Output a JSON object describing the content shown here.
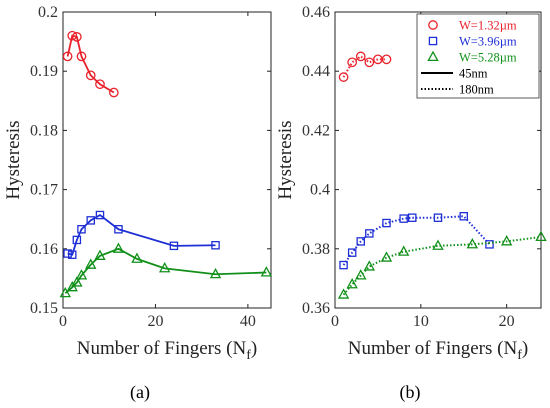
{
  "figure": {
    "panel_a_label": "(a)",
    "panel_b_label": "(b)"
  },
  "colors": {
    "red": "#e8212a",
    "blue": "#1f2fd6",
    "green": "#11901a",
    "axis": "#222222"
  },
  "chart_data": [
    {
      "type": "line",
      "panel": "(a)",
      "xlabel": "Number of Fingers (N",
      "xlabel_sub": "f",
      "xlabel_close": ")",
      "ylabel": "Hysteresis",
      "xlim": [
        0,
        45
      ],
      "ylim": [
        0.15,
        0.2
      ],
      "xticks": [
        0,
        20,
        40
      ],
      "yticks": [
        0.15,
        0.16,
        0.17,
        0.18,
        0.19,
        0.2
      ],
      "ytick_labels": [
        "0.15",
        "0.16",
        "0.17",
        "0.18",
        "0.19",
        "0.2"
      ],
      "grid": false,
      "series": [
        {
          "color": "red",
          "marker": "circle",
          "line": "solid",
          "x": [
            1,
            2,
            3,
            4,
            6,
            8,
            11
          ],
          "y": [
            0.1925,
            0.196,
            0.1958,
            0.1925,
            0.1893,
            0.1878,
            0.1864
          ]
        },
        {
          "color": "blue",
          "marker": "square",
          "line": "solid",
          "x": [
            1,
            2,
            3,
            4,
            6,
            8,
            12,
            24,
            33
          ],
          "y": [
            0.1592,
            0.159,
            0.1615,
            0.1633,
            0.1648,
            0.1657,
            0.1633,
            0.1605,
            0.1606
          ]
        },
        {
          "color": "green",
          "marker": "triangle",
          "line": "solid",
          "x": [
            0.5,
            2,
            3,
            4,
            6,
            8,
            12,
            16,
            22,
            33,
            44
          ],
          "y": [
            0.1525,
            0.1535,
            0.1543,
            0.1555,
            0.1573,
            0.1588,
            0.16,
            0.1583,
            0.1567,
            0.1557,
            0.156
          ]
        }
      ]
    },
    {
      "type": "line",
      "panel": "(b)",
      "xlabel": "Number of Fingers (N",
      "xlabel_sub": "f",
      "xlabel_close": ")",
      "ylabel": "Hysteresis",
      "xlim": [
        0,
        24
      ],
      "ylim": [
        0.36,
        0.46
      ],
      "xticks": [
        0,
        10,
        20
      ],
      "yticks": [
        0.36,
        0.38,
        0.4,
        0.42,
        0.44,
        0.46
      ],
      "ytick_labels": [
        "0.36",
        "0.38",
        "0.4",
        "0.42",
        "0.44",
        "0.46"
      ],
      "grid": false,
      "legend": {
        "placement": "top-right",
        "entries": [
          {
            "label": "W=1.32µm",
            "color": "red",
            "marker": "circle"
          },
          {
            "label": "W=3.96µm",
            "color": "blue",
            "marker": "square"
          },
          {
            "label": "W=5.28µm",
            "color": "green",
            "marker": "triangle"
          },
          {
            "label": "45nm",
            "line": "solid"
          },
          {
            "label": "180nm",
            "line": "dotted"
          }
        ]
      },
      "series": [
        {
          "color": "red",
          "marker": "circle",
          "line": "dotted",
          "x": [
            1,
            2,
            3,
            4,
            5,
            6
          ],
          "y": [
            0.438,
            0.443,
            0.445,
            0.443,
            0.444,
            0.444
          ]
        },
        {
          "color": "blue",
          "marker": "square",
          "line": "dotted",
          "x": [
            1,
            2,
            3,
            4,
            6,
            8,
            9,
            12,
            15,
            18
          ],
          "y": [
            0.3745,
            0.3787,
            0.3825,
            0.3852,
            0.3887,
            0.3902,
            0.3905,
            0.3905,
            0.391,
            0.3815
          ]
        },
        {
          "color": "green",
          "marker": "triangle",
          "line": "dotted",
          "x": [
            1,
            2,
            3,
            4,
            6,
            8,
            12,
            16,
            20,
            24
          ],
          "y": [
            0.3645,
            0.368,
            0.371,
            0.374,
            0.377,
            0.379,
            0.381,
            0.3815,
            0.3825,
            0.384
          ]
        }
      ]
    }
  ]
}
